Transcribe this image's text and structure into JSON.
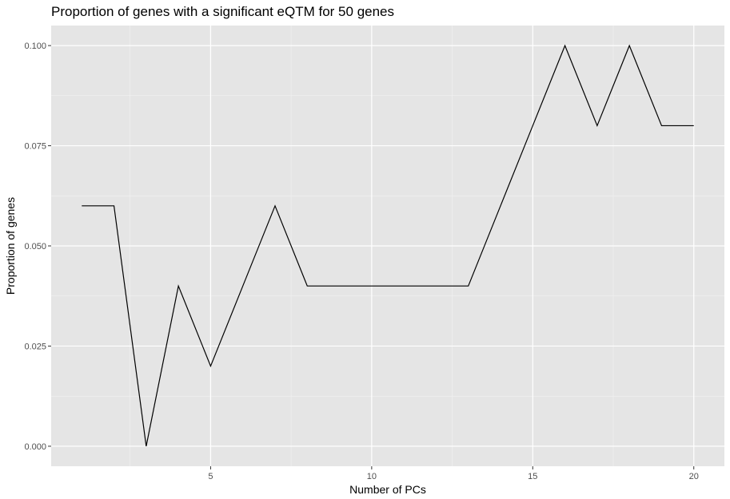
{
  "chart_data": {
    "type": "line",
    "title": "Proportion of genes with a significant eQTM for 50 genes",
    "xlabel": "Number of PCs",
    "ylabel": "Proportion of genes",
    "x": [
      1,
      2,
      3,
      4,
      5,
      6,
      7,
      8,
      9,
      10,
      11,
      12,
      13,
      14,
      15,
      16,
      17,
      18,
      19,
      20
    ],
    "series": [
      {
        "values": [
          0.06,
          0.06,
          0.0,
          0.04,
          0.02,
          0.04,
          0.06,
          0.04,
          0.04,
          0.04,
          0.04,
          0.04,
          0.04,
          0.06,
          0.08,
          0.1,
          0.08,
          0.1,
          0.08,
          0.08
        ]
      }
    ],
    "xlim": [
      0.05,
      20.95
    ],
    "ylim": [
      -0.005,
      0.105
    ],
    "x_ticks": [
      5,
      10,
      15,
      20
    ],
    "x_tick_labels": [
      "5",
      "10",
      "15",
      "20"
    ],
    "y_ticks": [
      0.0,
      0.025,
      0.05,
      0.075,
      0.1
    ],
    "y_tick_labels": [
      "0.000",
      "0.025",
      "0.050",
      "0.075",
      "0.100"
    ],
    "grid": true,
    "colors": {
      "panel_background": "#e5e5e5",
      "grid_major": "#ffffff",
      "grid_minor": "#f2f2f2",
      "line": "#000000"
    }
  }
}
